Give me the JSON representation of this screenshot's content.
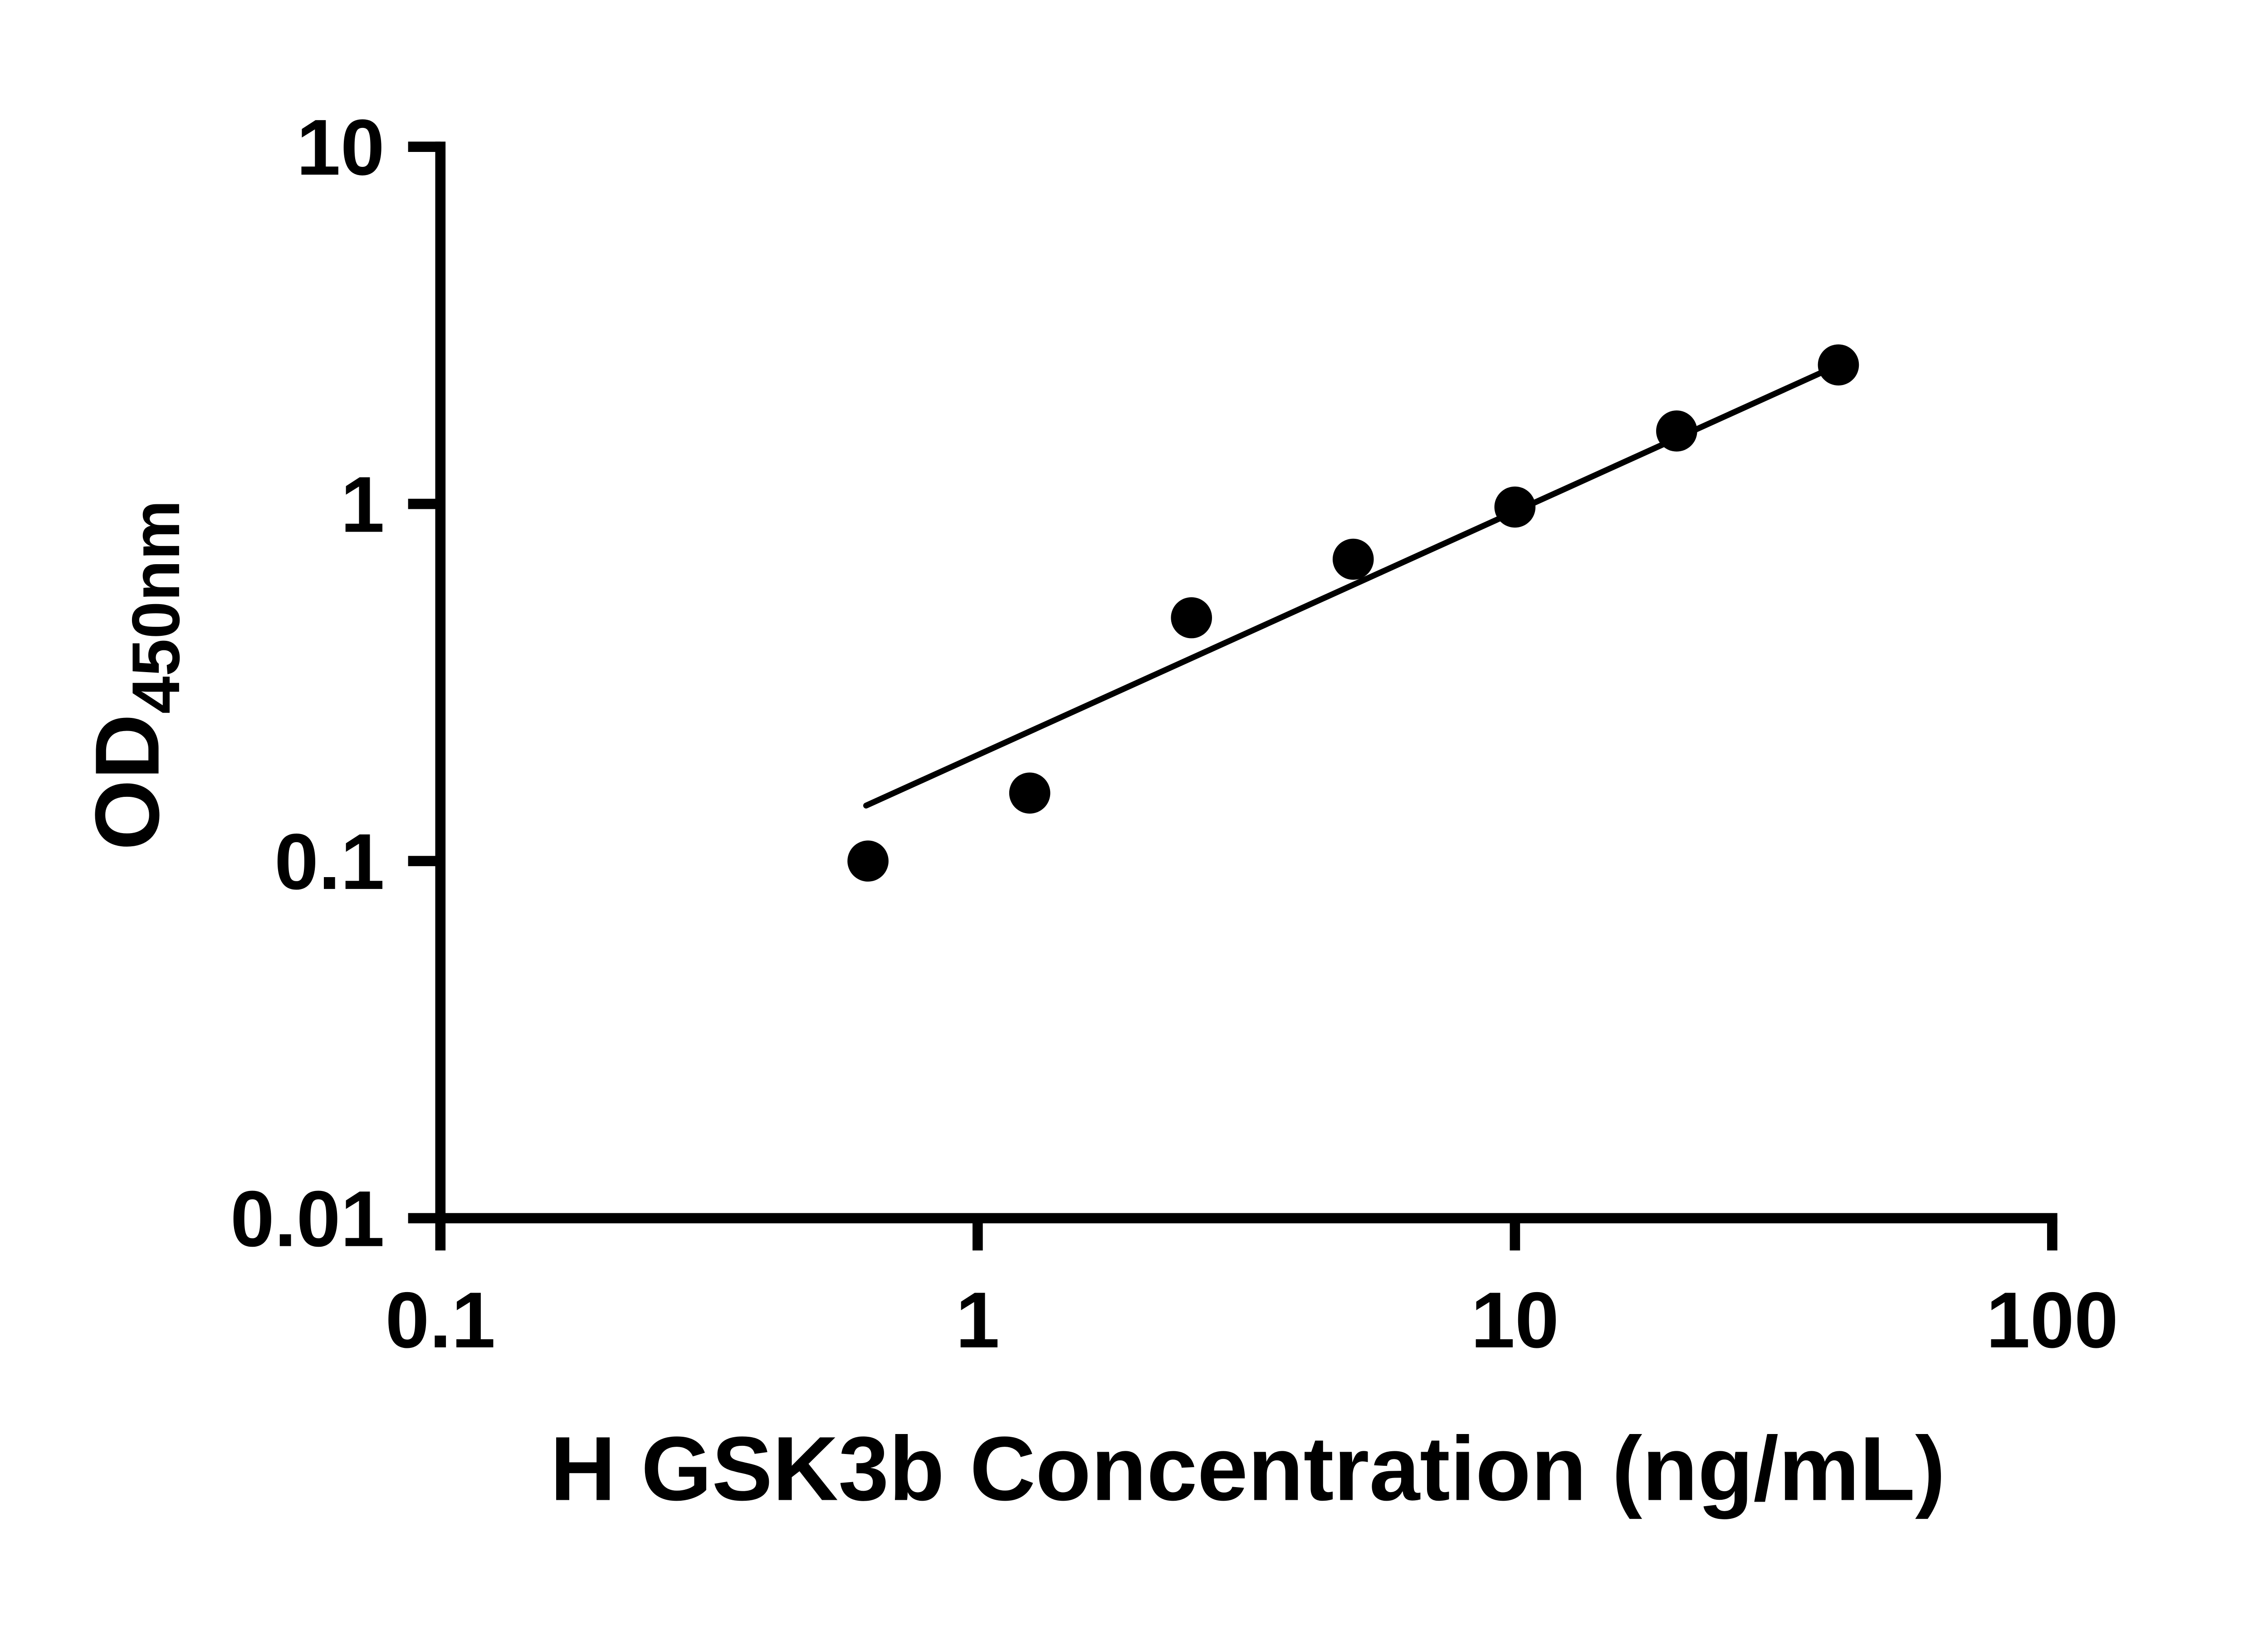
{
  "figure": {
    "background": "#ffffff",
    "ink_color": "#000000"
  },
  "chart_data": {
    "type": "scatter",
    "title": "",
    "xlabel": "H GSK3b Concentration (ng/mL)",
    "ylabel_main": "OD",
    "ylabel_sub": "450nm",
    "xscale": "log",
    "yscale": "log",
    "xlim": [
      0.1,
      100
    ],
    "ylim": [
      0.01,
      10
    ],
    "xticks": [
      0.1,
      1,
      10,
      100
    ],
    "yticks": [
      0.01,
      0.1,
      1,
      10
    ],
    "xtick_labels": [
      "0.1",
      "1",
      "10",
      "100"
    ],
    "ytick_labels": [
      "0.01",
      "0.1",
      "1",
      "10"
    ],
    "grid": false,
    "legend": null,
    "marker_color": "#000000",
    "line_color": "#000000",
    "axis_color": "#000000",
    "marker_radius": 14,
    "x": [
      0.625,
      1.25,
      2.5,
      5,
      10,
      20,
      40
    ],
    "y": [
      0.1,
      0.155,
      0.48,
      0.7,
      0.98,
      1.6,
      2.45
    ],
    "trendline": {
      "x1": 0.62,
      "y1": 0.143,
      "x2": 40,
      "y2": 2.45
    }
  }
}
